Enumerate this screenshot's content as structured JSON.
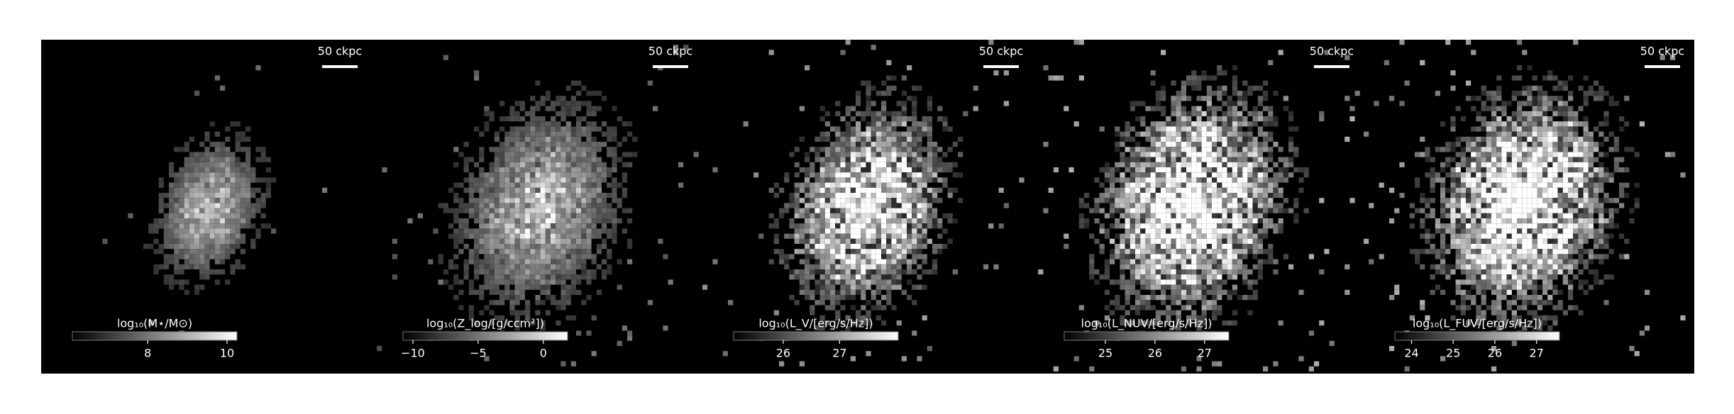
{
  "chart_data": [
    {
      "type": "image",
      "scale_bar": "50 ckpc",
      "colorbar": {
        "label": "log₁₀(M⋆/M⊙)",
        "lim": [
          6.1,
          10.25
        ],
        "ticks": [
          8,
          10
        ],
        "cmap": "gray"
      }
    },
    {
      "type": "image",
      "scale_bar": "50 ckpc",
      "colorbar": {
        "label": "log₁₀(Z_log/[g/ccm²])",
        "lim": [
          -10.76,
          1.86
        ],
        "ticks": [
          {
            "value": -10,
            "label": "−10"
          },
          {
            "value": -5,
            "label": "−5"
          },
          0
        ],
        "cmap": "gray"
      }
    },
    {
      "type": "image",
      "scale_bar": "50 ckpc",
      "colorbar": {
        "label": "log₁₀(L_V/[erg/s/Hz])",
        "lim": [
          25.12,
          28.04
        ],
        "ticks": [
          26,
          27
        ],
        "cmap": "gray"
      }
    },
    {
      "type": "image",
      "scale_bar": "50 ckpc",
      "colorbar": {
        "label": "log₁₀(L_NUV/[erg/s/Hz])",
        "lim": [
          24.17,
          27.49
        ],
        "ticks": [
          25,
          26,
          27
        ],
        "cmap": "gray"
      }
    },
    {
      "type": "image",
      "scale_bar": "50 ckpc",
      "colorbar": {
        "label": "log₁₀(L_FUV/[erg/s/Hz])",
        "lim": [
          23.6,
          27.55
        ],
        "ticks": [
          24,
          25,
          26,
          27
        ],
        "cmap": "gray"
      }
    }
  ]
}
